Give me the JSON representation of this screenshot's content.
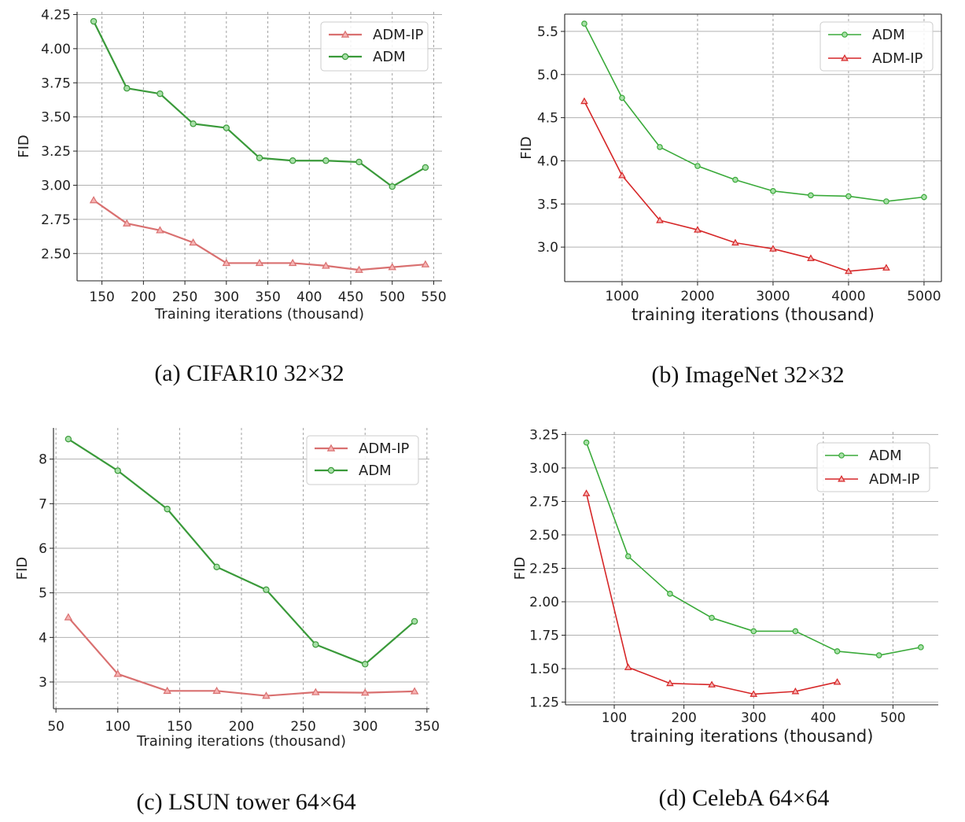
{
  "chart_data": [
    {
      "type": "line",
      "xlabel": "Training iterations (thousand)",
      "ylabel": "FID",
      "xlim": [
        120,
        560
      ],
      "ylim": [
        2.3,
        4.27
      ],
      "xticks": [
        150,
        200,
        250,
        300,
        350,
        400,
        450,
        500,
        550
      ],
      "yticks": [
        2.5,
        2.75,
        3.0,
        3.25,
        3.5,
        3.75,
        4.0,
        4.25
      ],
      "ytick_labels": [
        "2.50",
        "2.75",
        "3.00",
        "3.25",
        "3.50",
        "3.75",
        "4.00",
        "4.25"
      ],
      "grid": "x-dashed-y-solid",
      "legend": "top-right",
      "caption": "(a) CIFAR10 32×32",
      "series": [
        {
          "name": "ADM-IP",
          "color": "#d97070",
          "marker": "triangle",
          "x": [
            140,
            180,
            220,
            260,
            300,
            340,
            380,
            420,
            460,
            500,
            540
          ],
          "y": [
            2.89,
            2.72,
            2.67,
            2.58,
            2.43,
            2.43,
            2.43,
            2.41,
            2.38,
            2.4,
            2.42
          ]
        },
        {
          "name": "ADM",
          "color": "#3a9a3a",
          "marker": "circle",
          "x": [
            140,
            180,
            220,
            260,
            300,
            340,
            380,
            420,
            460,
            500,
            540
          ],
          "y": [
            4.2,
            3.71,
            3.67,
            3.45,
            3.42,
            3.2,
            3.18,
            3.18,
            3.17,
            2.99,
            3.13
          ]
        }
      ]
    },
    {
      "type": "line",
      "xlabel": "training iterations (thousand)",
      "ylabel": "FID",
      "xlim": [
        240,
        5230
      ],
      "ylim": [
        2.6,
        5.7
      ],
      "xticks": [
        1000,
        2000,
        3000,
        4000,
        5000
      ],
      "yticks": [
        3.0,
        3.5,
        4.0,
        4.5,
        5.0,
        5.5
      ],
      "ytick_labels": [
        "3.0",
        "3.5",
        "4.0",
        "4.5",
        "5.0",
        "5.5"
      ],
      "grid": "x-dashed-y-solid",
      "legend": "top-right",
      "caption": "(b) ImageNet 32×32",
      "series": [
        {
          "name": "ADM",
          "color": "#3aaa3a",
          "marker": "circle",
          "x": [
            500,
            1000,
            1500,
            2000,
            2500,
            3000,
            3500,
            4000,
            4500,
            5000
          ],
          "y": [
            5.59,
            4.73,
            4.16,
            3.94,
            3.78,
            3.65,
            3.6,
            3.59,
            3.53,
            3.58
          ]
        },
        {
          "name": "ADM-IP",
          "color": "#d62728",
          "marker": "triangle",
          "x": [
            500,
            1000,
            1500,
            2000,
            2500,
            3000,
            3500,
            4000,
            4500
          ],
          "y": [
            4.69,
            3.83,
            3.31,
            3.2,
            3.05,
            2.98,
            2.87,
            2.72,
            2.76
          ]
        }
      ]
    },
    {
      "type": "line",
      "xlabel": "Training iterations (thousand)",
      "ylabel": "FID",
      "xlim": [
        48,
        352
      ],
      "ylim": [
        2.4,
        8.7
      ],
      "xticks": [
        50,
        100,
        150,
        200,
        250,
        300,
        350
      ],
      "yticks": [
        3,
        4,
        5,
        6,
        7,
        8
      ],
      "ytick_labels": [
        "3",
        "4",
        "5",
        "6",
        "7",
        "8"
      ],
      "grid": "x-dashed-y-solid",
      "legend": "top-right",
      "caption": "(c) LSUN tower 64×64",
      "series": [
        {
          "name": "ADM-IP",
          "color": "#d97070",
          "marker": "triangle",
          "x": [
            60,
            100,
            140,
            180,
            220,
            260,
            300,
            340
          ],
          "y": [
            4.45,
            3.18,
            2.8,
            2.8,
            2.69,
            2.77,
            2.76,
            2.79
          ]
        },
        {
          "name": "ADM",
          "color": "#3a9a3a",
          "marker": "circle",
          "x": [
            60,
            100,
            140,
            180,
            220,
            260,
            300,
            340
          ],
          "y": [
            8.45,
            7.74,
            6.88,
            5.58,
            5.07,
            3.84,
            3.4,
            4.36
          ]
        }
      ]
    },
    {
      "type": "line",
      "xlabel": "training iterations (thousand)",
      "ylabel": "FID",
      "xlim": [
        30,
        565
      ],
      "ylim": [
        1.23,
        3.27
      ],
      "xticks": [
        100,
        200,
        300,
        400,
        500
      ],
      "yticks": [
        1.25,
        1.5,
        1.75,
        2.0,
        2.25,
        2.5,
        2.75,
        3.0,
        3.25
      ],
      "ytick_labels": [
        "1.25",
        "1.50",
        "1.75",
        "2.00",
        "2.25",
        "2.50",
        "2.75",
        "3.00",
        "3.25"
      ],
      "grid": "x-dashed-y-solid",
      "legend": "top-right",
      "caption": "(d) CelebA 64×64",
      "series": [
        {
          "name": "ADM",
          "color": "#3aaa3a",
          "marker": "circle",
          "x": [
            60,
            120,
            180,
            240,
            300,
            360,
            420,
            480,
            540
          ],
          "y": [
            3.19,
            2.34,
            2.06,
            1.88,
            1.78,
            1.78,
            1.63,
            1.6,
            1.66
          ]
        },
        {
          "name": "ADM-IP",
          "color": "#d62728",
          "marker": "triangle",
          "x": [
            60,
            120,
            180,
            240,
            300,
            360,
            420
          ],
          "y": [
            2.81,
            1.51,
            1.39,
            1.38,
            1.31,
            1.33,
            1.4
          ]
        }
      ]
    }
  ]
}
